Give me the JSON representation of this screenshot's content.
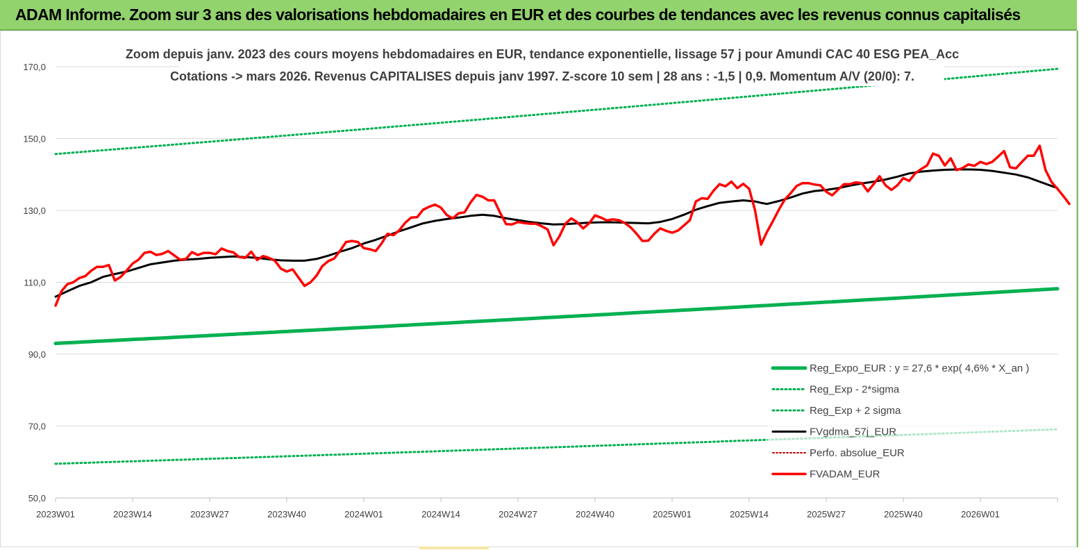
{
  "header": {
    "title": "ADAM Informe. Zoom sur 3 ans des valorisations hebdomadaires en EUR et des courbes de tendances avec les revenus connus capitalisés"
  },
  "chart_data": {
    "type": "line",
    "title_line1": "Zoom depuis janv. 2023 des cours moyens hebdomadaires en EUR, tendance exponentielle, lissage 57 j pour Amundi CAC 40 ESG PEA_Acc",
    "title_line2": "Cotations -> mars 2026. Revenus CAPITALISES depuis janv 1997. Z-score 10 sem | 28 ans : -1,5 | 0,9. Momentum A/V (20/0): 7.",
    "ylim": [
      50,
      170
    ],
    "yticks": [
      "50,0",
      "70,0",
      "90,0",
      "110,0",
      "130,0",
      "150,0",
      "170,0"
    ],
    "ytick_values": [
      50,
      70,
      90,
      110,
      130,
      150,
      170
    ],
    "xticks": [
      "2023W01",
      "2023W14",
      "2023W27",
      "2023W40",
      "2024W01",
      "2024W14",
      "2024W27",
      "2024W40",
      "2025W01",
      "2025W14",
      "2025W27",
      "2025W40",
      "2026W01"
    ],
    "xtick_weeks": [
      0,
      13,
      26,
      39,
      52,
      65,
      78,
      91,
      104,
      117,
      130,
      143,
      156
    ],
    "x_week_range": [
      0,
      169
    ],
    "grid": true,
    "legend_position": "bottom-right",
    "colors": {
      "reg_expo": "#00b050",
      "reg_sigma": "#00b050",
      "smooth": "#000000",
      "perfo": "#c00000",
      "fvadam": "#ff0000"
    },
    "series": [
      {
        "key": "reg_expo",
        "name": "Reg_Expo_EUR : y = 27,6 * exp( 4,6% *  X_an )",
        "start": 93.0,
        "end": 108.2
      },
      {
        "key": "reg_minus",
        "name": "Reg_Exp - 2*sigma",
        "start": 59.5,
        "end": 69.1
      },
      {
        "key": "reg_plus",
        "name": "Reg_Exp + 2 sigma",
        "start": 145.7,
        "end": 169.4
      },
      {
        "key": "smooth",
        "name": "FVgdma_57j_EUR",
        "points": [
          [
            0,
            106
          ],
          [
            2,
            107.5
          ],
          [
            4,
            109
          ],
          [
            6,
            110
          ],
          [
            8,
            111.5
          ],
          [
            10,
            112.3
          ],
          [
            12,
            113
          ],
          [
            14,
            114
          ],
          [
            16,
            115
          ],
          [
            18,
            115.5
          ],
          [
            20,
            116
          ],
          [
            22,
            116.3
          ],
          [
            24,
            116.5
          ],
          [
            26,
            116.8
          ],
          [
            28,
            117
          ],
          [
            30,
            117.2
          ],
          [
            32,
            117
          ],
          [
            34,
            116.8
          ],
          [
            36,
            116.4
          ],
          [
            38,
            116.1
          ],
          [
            40,
            116
          ],
          [
            42,
            116
          ],
          [
            44,
            116.5
          ],
          [
            46,
            117.4
          ],
          [
            48,
            118.5
          ],
          [
            50,
            119.5
          ],
          [
            52,
            120.8
          ],
          [
            54,
            121.8
          ],
          [
            56,
            123
          ],
          [
            58,
            124.2
          ],
          [
            60,
            125.3
          ],
          [
            62,
            126.4
          ],
          [
            64,
            127.1
          ],
          [
            66,
            127.6
          ],
          [
            68,
            128
          ],
          [
            70,
            128.5
          ],
          [
            72,
            128.8
          ],
          [
            74,
            128.5
          ],
          [
            76,
            127.8
          ],
          [
            78,
            127.3
          ],
          [
            80,
            126.8
          ],
          [
            82,
            126.4
          ],
          [
            84,
            126.1
          ],
          [
            86,
            126.2
          ],
          [
            88,
            126.4
          ],
          [
            90,
            126.6
          ],
          [
            92,
            126.7
          ],
          [
            94,
            126.7
          ],
          [
            96,
            126.6
          ],
          [
            98,
            126.5
          ],
          [
            100,
            126.4
          ],
          [
            102,
            126.8
          ],
          [
            104,
            127.6
          ],
          [
            106,
            128.8
          ],
          [
            108,
            130.2
          ],
          [
            110,
            131.2
          ],
          [
            112,
            132.1
          ],
          [
            114,
            132.5
          ],
          [
            116,
            132.8
          ],
          [
            118,
            132.5
          ],
          [
            119,
            132.1
          ],
          [
            120,
            131.8
          ],
          [
            122,
            132.6
          ],
          [
            124,
            133.6
          ],
          [
            126,
            134.7
          ],
          [
            128,
            135.4
          ],
          [
            130,
            135.7
          ],
          [
            132,
            136.2
          ],
          [
            134,
            136.9
          ],
          [
            136,
            137.5
          ],
          [
            138,
            138
          ],
          [
            140,
            138.6
          ],
          [
            142,
            139.4
          ],
          [
            144,
            140.3
          ],
          [
            146,
            140.8
          ],
          [
            148,
            141.1
          ],
          [
            150,
            141.3
          ],
          [
            152,
            141.4
          ],
          [
            154,
            141.4
          ],
          [
            156,
            141.3
          ],
          [
            158,
            141
          ],
          [
            160,
            140.5
          ],
          [
            162,
            140
          ],
          [
            164,
            139.2
          ],
          [
            166,
            138
          ],
          [
            168,
            136.8
          ],
          [
            169,
            136.2
          ]
        ]
      },
      {
        "key": "perfo",
        "name": "Perfo. absolue_EUR",
        "points": []
      },
      {
        "key": "fvadam",
        "name": "FVADAM_EUR",
        "points": [
          [
            0,
            103.5
          ],
          [
            1,
            107.5
          ],
          [
            2,
            109.5
          ],
          [
            3,
            110
          ],
          [
            4,
            111.2
          ],
          [
            5,
            111.7
          ],
          [
            6,
            113.2
          ],
          [
            7,
            114.3
          ],
          [
            8,
            114.3
          ],
          [
            9,
            114.8
          ],
          [
            10,
            110.5
          ],
          [
            11,
            111.5
          ],
          [
            12,
            113.3
          ],
          [
            13,
            115.2
          ],
          [
            14,
            116.3
          ],
          [
            15,
            118.2
          ],
          [
            16,
            118.5
          ],
          [
            17,
            117.6
          ],
          [
            18,
            117.9
          ],
          [
            19,
            118.7
          ],
          [
            20,
            117.5
          ],
          [
            21,
            116.3
          ],
          [
            22,
            116.5
          ],
          [
            23,
            118.4
          ],
          [
            24,
            117.6
          ],
          [
            25,
            118.2
          ],
          [
            26,
            118.2
          ],
          [
            27,
            117.8
          ],
          [
            28,
            119.4
          ],
          [
            29,
            118.7
          ],
          [
            30,
            118.3
          ],
          [
            31,
            117
          ],
          [
            32,
            116.8
          ],
          [
            33,
            118.5
          ],
          [
            34,
            116.2
          ],
          [
            35,
            117.3
          ],
          [
            36,
            116.8
          ],
          [
            37,
            116
          ],
          [
            38,
            113.8
          ],
          [
            39,
            113
          ],
          [
            40,
            113.6
          ],
          [
            41,
            111.3
          ],
          [
            42,
            109
          ],
          [
            43,
            110
          ],
          [
            44,
            111.8
          ],
          [
            45,
            114.5
          ],
          [
            46,
            115.9
          ],
          [
            47,
            116.6
          ],
          [
            48,
            118.8
          ],
          [
            49,
            121.2
          ],
          [
            50,
            121.5
          ],
          [
            51,
            121.2
          ],
          [
            52,
            119.5
          ],
          [
            53,
            119.2
          ],
          [
            54,
            118.7
          ],
          [
            55,
            120.8
          ],
          [
            56,
            123.5
          ],
          [
            57,
            123.1
          ],
          [
            58,
            124.5
          ],
          [
            59,
            126.6
          ],
          [
            60,
            128
          ],
          [
            61,
            128.1
          ],
          [
            62,
            130.2
          ],
          [
            63,
            131
          ],
          [
            64,
            131.6
          ],
          [
            65,
            130.8
          ],
          [
            66,
            128.7
          ],
          [
            67,
            127.8
          ],
          [
            68,
            129.2
          ],
          [
            69,
            129.5
          ],
          [
            70,
            132.2
          ],
          [
            71,
            134.3
          ],
          [
            72,
            133.8
          ],
          [
            73,
            132.8
          ],
          [
            74,
            132.8
          ],
          [
            75,
            129.3
          ],
          [
            76,
            126.2
          ],
          [
            77,
            126.1
          ],
          [
            78,
            126.8
          ],
          [
            79,
            126.5
          ],
          [
            80,
            126.3
          ],
          [
            81,
            126.3
          ],
          [
            82,
            125.6
          ],
          [
            83,
            124.7
          ],
          [
            84,
            120.3
          ],
          [
            85,
            122.8
          ],
          [
            86,
            126.3
          ],
          [
            87,
            127.8
          ],
          [
            88,
            126.7
          ],
          [
            89,
            125
          ],
          [
            90,
            126.4
          ],
          [
            91,
            128.6
          ],
          [
            92,
            128
          ],
          [
            93,
            127.2
          ],
          [
            94,
            127.5
          ],
          [
            95,
            127.3
          ],
          [
            96,
            126.5
          ],
          [
            97,
            125.3
          ],
          [
            98,
            123.5
          ],
          [
            99,
            121.5
          ],
          [
            100,
            121.6
          ],
          [
            101,
            123.5
          ],
          [
            102,
            125
          ],
          [
            103,
            124.3
          ],
          [
            104,
            123.8
          ],
          [
            105,
            124.4
          ],
          [
            106,
            125.8
          ],
          [
            107,
            127.3
          ],
          [
            108,
            132.5
          ],
          [
            109,
            133.4
          ],
          [
            110,
            133.2
          ],
          [
            111,
            135.5
          ],
          [
            112,
            137.3
          ],
          [
            113,
            136.7
          ],
          [
            114,
            138
          ],
          [
            115,
            136.2
          ],
          [
            116,
            137.4
          ],
          [
            117,
            136
          ],
          [
            118,
            130
          ],
          [
            119,
            120.5
          ],
          [
            120,
            124
          ],
          [
            121,
            127
          ],
          [
            122,
            130.2
          ],
          [
            123,
            133
          ],
          [
            124,
            134.8
          ],
          [
            125,
            136.8
          ],
          [
            126,
            137.6
          ],
          [
            127,
            137.6
          ],
          [
            128,
            137.2
          ],
          [
            129,
            137
          ],
          [
            130,
            135.2
          ],
          [
            131,
            134.2
          ],
          [
            132,
            135.8
          ],
          [
            133,
            137.3
          ],
          [
            134,
            137.3
          ],
          [
            135,
            137.8
          ],
          [
            136,
            137.6
          ],
          [
            137,
            135.3
          ],
          [
            138,
            137.3
          ],
          [
            139,
            139.5
          ],
          [
            140,
            137
          ],
          [
            141,
            135.7
          ],
          [
            142,
            137
          ],
          [
            143,
            139
          ],
          [
            144,
            138.2
          ],
          [
            145,
            140.3
          ],
          [
            146,
            141.5
          ],
          [
            147,
            142.5
          ],
          [
            148,
            145.8
          ],
          [
            149,
            145.2
          ],
          [
            150,
            142.5
          ],
          [
            151,
            144.5
          ],
          [
            152,
            141.2
          ],
          [
            153,
            141.8
          ],
          [
            154,
            142.8
          ],
          [
            155,
            142.4
          ],
          [
            156,
            143.5
          ],
          [
            157,
            142.9
          ],
          [
            158,
            143.5
          ],
          [
            159,
            145
          ],
          [
            160,
            146.5
          ],
          [
            161,
            142
          ],
          [
            162,
            141.7
          ],
          [
            163,
            143.5
          ],
          [
            164,
            145.2
          ],
          [
            165,
            145.2
          ],
          [
            166,
            148
          ],
          [
            167,
            141.2
          ],
          [
            168,
            137.9
          ],
          [
            169,
            136
          ],
          [
            170,
            134
          ],
          [
            171,
            131.8
          ]
        ]
      }
    ]
  }
}
